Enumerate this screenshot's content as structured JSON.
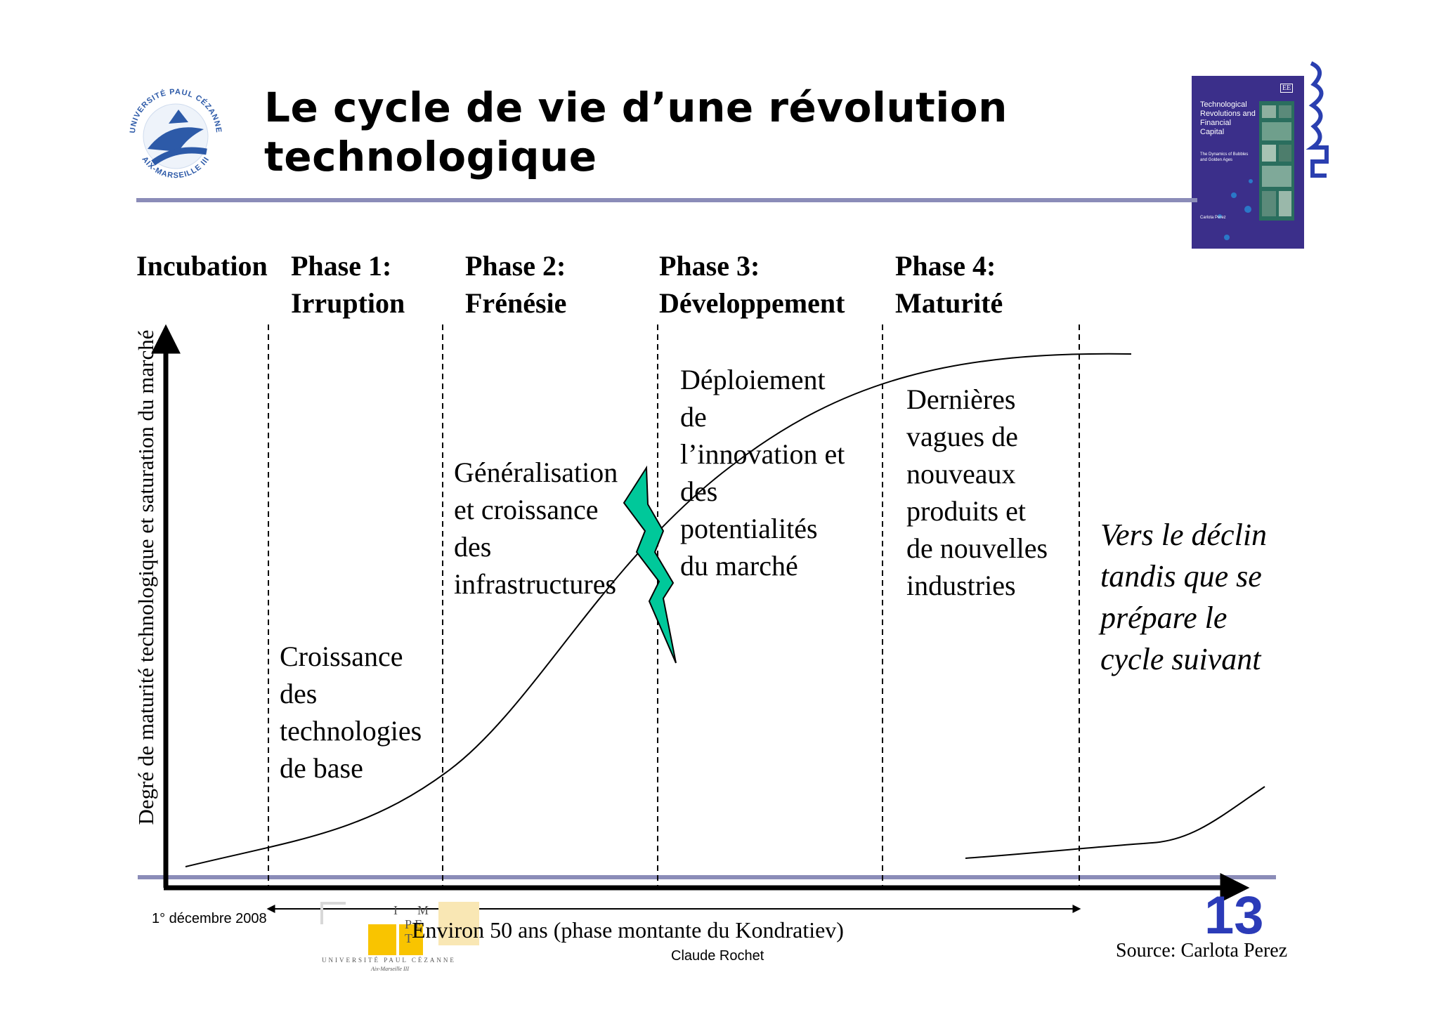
{
  "slide": {
    "title_line1": "Le cycle de vie d’une révolution",
    "title_line2": "technologique",
    "slide_number": "13",
    "date": "1° décembre 2008",
    "author": "Claude Rochet",
    "source": "Source: Carlota Perez"
  },
  "phases": [
    {
      "line1": "Incubation",
      "line2": ""
    },
    {
      "line1": "Phase 1:",
      "line2": "Irruption"
    },
    {
      "line1": "Phase 2:",
      "line2": "Frénésie"
    },
    {
      "line1": "Phase 3:",
      "line2": "Développement"
    },
    {
      "line1": "Phase 4:",
      "line2": "Maturité"
    }
  ],
  "descriptions": {
    "phase1": [
      "Croissance",
      "des",
      "technologies",
      "de base"
    ],
    "phase2": [
      "Généralisation",
      "et croissance",
      "des",
      "infrastructures"
    ],
    "phase3": [
      "Déploiement",
      "de",
      "l’innovation et",
      "des",
      "potentialités",
      "du marché"
    ],
    "phase4": [
      "Dernières",
      "vagues de",
      "nouveaux",
      "produits et",
      "de nouvelles",
      "industries"
    ],
    "decline": [
      "Vers le déclin",
      "tandis que se",
      "prépare le",
      "cycle suivant"
    ]
  },
  "axes": {
    "y_label": "Degré de maturité technologique et saturation du marché",
    "span_label": "Environ 50 ans (phase montante du Kondratiev)"
  },
  "logos": {
    "university_top": "UNIVERSITÉ PAUL CÉZANNE",
    "university_bottom": "AIX-MARSEILLE III",
    "impt_letters": [
      "I",
      "M",
      "P",
      "E",
      "T"
    ],
    "impt_caption": "UNIVERSITÉ PAUL CÉZANNE",
    "impt_subcaption": "Aix-Marseille III",
    "book_title": "Technological Revolutions and Financial Capital",
    "book_subtitle": "The Dynamics of Bubbles and Golden Ages",
    "book_author": "Carlota Perez",
    "book_publisher": "EE"
  },
  "colors": {
    "rule": "#8b8cb8",
    "axis": "#000000",
    "lightning": "#00c89a",
    "slide_number": "#2b3bb8",
    "logo_blue": "#2d5aa8",
    "book_bg": "#3b2f8a",
    "impt_yellow": "#f9c400"
  }
}
